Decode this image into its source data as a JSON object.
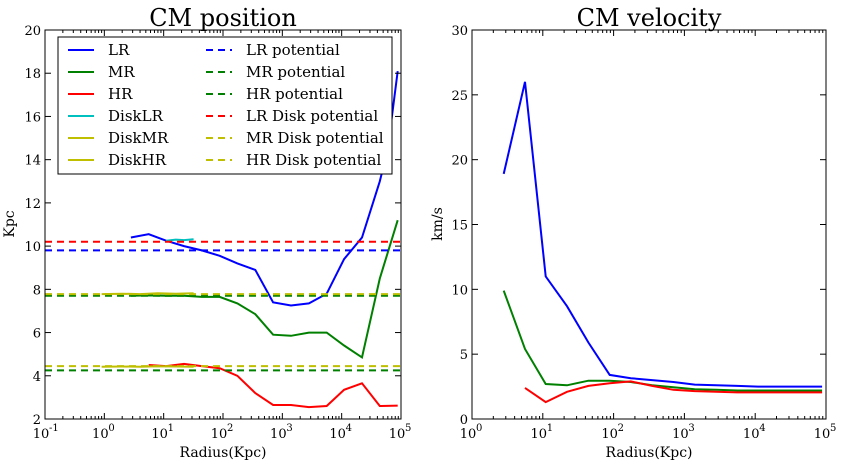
{
  "chart_data": [
    {
      "type": "line",
      "title": "CM position",
      "xlabel": "Radius(Kpc)",
      "ylabel": "Kpc",
      "xscale": "log",
      "xlim": [
        0.1,
        100000
      ],
      "ylim": [
        2,
        20
      ],
      "xticks": [
        "10",
        "10",
        "10",
        "10",
        "10",
        "10",
        "10"
      ],
      "xtick_exponents": [
        "-1",
        "0",
        "1",
        "2",
        "3",
        "4",
        "5"
      ],
      "xtick_values": [
        0.1,
        1,
        10,
        100,
        1000,
        10000,
        100000
      ],
      "yticks": [
        "2",
        "4",
        "6",
        "8",
        "10",
        "12",
        "14",
        "16",
        "18",
        "20"
      ],
      "ytick_values": [
        2,
        4,
        6,
        8,
        10,
        12,
        14,
        16,
        18,
        20
      ],
      "grid": false,
      "legend_position": "top-left",
      "legend_columns": 2,
      "series": [
        {
          "name": "LR",
          "color": "#0000ff",
          "style": "solid",
          "x": [
            2.8,
            5.6,
            11,
            22,
            44,
            88,
            175,
            350,
            700,
            1400,
            2800,
            5600,
            11000,
            22000,
            44000,
            60000,
            88000
          ],
          "y": [
            10.4,
            10.55,
            10.25,
            10.0,
            9.8,
            9.55,
            9.2,
            8.9,
            7.4,
            7.25,
            7.35,
            7.8,
            9.4,
            10.4,
            13.0,
            14.5,
            18.1
          ]
        },
        {
          "name": "MR",
          "color": "#008000",
          "style": "solid",
          "x": [
            2.8,
            5.6,
            11,
            22,
            44,
            88,
            175,
            350,
            700,
            1400,
            2800,
            5600,
            11000,
            22000,
            44000,
            88000
          ],
          "y": [
            7.7,
            7.72,
            7.7,
            7.7,
            7.65,
            7.65,
            7.35,
            6.85,
            5.9,
            5.85,
            6.0,
            6.0,
            5.4,
            4.85,
            8.5,
            11.2
          ]
        },
        {
          "name": "HR",
          "color": "#ff0000",
          "style": "solid",
          "x": [
            5.6,
            11,
            22,
            44,
            88,
            175,
            350,
            700,
            1400,
            2800,
            5600,
            11000,
            22000,
            44000,
            88000
          ],
          "y": [
            4.5,
            4.45,
            4.55,
            4.45,
            4.35,
            4.0,
            3.2,
            2.65,
            2.65,
            2.55,
            2.6,
            3.35,
            3.65,
            2.6,
            2.62
          ]
        },
        {
          "name": "DiskLR",
          "color": "#00bfbf",
          "style": "solid",
          "x": [
            11,
            16,
            22,
            32
          ],
          "y": [
            10.25,
            10.3,
            10.28,
            10.32
          ]
        },
        {
          "name": "DiskMR",
          "color": "#bfbf00",
          "style": "solid",
          "x": [
            0.9,
            2,
            4,
            8,
            16,
            32
          ],
          "y": [
            7.78,
            7.8,
            7.78,
            7.82,
            7.8,
            7.82
          ]
        },
        {
          "name": "DiskHR",
          "color": "#bfbf00",
          "style": "solid",
          "x": [
            0.9,
            2,
            4,
            8,
            16,
            32
          ],
          "y": [
            4.42,
            4.43,
            4.42,
            4.44,
            4.43,
            4.42
          ]
        },
        {
          "name": "LR potential",
          "color": "#0000ff",
          "style": "dashed",
          "x": [
            0.1,
            100000
          ],
          "y": [
            9.8,
            9.8
          ]
        },
        {
          "name": "MR potential",
          "color": "#008000",
          "style": "dashed",
          "x": [
            0.1,
            100000
          ],
          "y": [
            7.7,
            7.7
          ]
        },
        {
          "name": "HR potential",
          "color": "#008000",
          "style": "dashed",
          "x": [
            0.1,
            100000
          ],
          "y": [
            4.25,
            4.25
          ]
        },
        {
          "name": "LR Disk potential",
          "color": "#ff0000",
          "style": "dashed",
          "x": [
            0.1,
            100000
          ],
          "y": [
            10.2,
            10.2
          ]
        },
        {
          "name": "MR Disk potential",
          "color": "#bfbf00",
          "style": "dashed",
          "x": [
            0.1,
            100000
          ],
          "y": [
            7.78,
            7.78
          ]
        },
        {
          "name": "HR Disk potential",
          "color": "#bfbf00",
          "style": "dashed",
          "x": [
            0.1,
            100000
          ],
          "y": [
            4.45,
            4.45
          ]
        }
      ]
    },
    {
      "type": "line",
      "title": "CM velocity",
      "xlabel": "Radius(Kpc)",
      "ylabel": "km/s",
      "xscale": "log",
      "xlim": [
        1,
        100000
      ],
      "ylim": [
        0,
        30
      ],
      "xticks": [
        "10",
        "10",
        "10",
        "10",
        "10",
        "10"
      ],
      "xtick_exponents": [
        "0",
        "1",
        "2",
        "3",
        "4",
        "5"
      ],
      "xtick_values": [
        1,
        10,
        100,
        1000,
        10000,
        100000
      ],
      "yticks": [
        "0",
        "5",
        "10",
        "15",
        "20",
        "25",
        "30"
      ],
      "ytick_values": [
        0,
        5,
        10,
        15,
        20,
        25,
        30
      ],
      "grid": false,
      "series": [
        {
          "color": "#0000ff",
          "style": "solid",
          "x": [
            2.8,
            5.6,
            11,
            22,
            44,
            88,
            175,
            350,
            700,
            1400,
            2800,
            5600,
            11000,
            22000,
            44000,
            88000
          ],
          "y": [
            18.9,
            26.0,
            11.0,
            8.7,
            5.9,
            3.4,
            3.15,
            3.0,
            2.85,
            2.65,
            2.6,
            2.55,
            2.5,
            2.5,
            2.5,
            2.5
          ]
        },
        {
          "color": "#008000",
          "style": "solid",
          "x": [
            2.8,
            5.6,
            11,
            22,
            44,
            88,
            175,
            350,
            700,
            1400,
            2800,
            5600,
            11000,
            22000,
            44000,
            88000
          ],
          "y": [
            9.9,
            5.4,
            2.7,
            2.6,
            2.95,
            2.95,
            2.85,
            2.6,
            2.45,
            2.3,
            2.25,
            2.2,
            2.2,
            2.2,
            2.2,
            2.2
          ]
        },
        {
          "color": "#ff0000",
          "style": "solid",
          "x": [
            5.6,
            11,
            22,
            44,
            88,
            175,
            350,
            700,
            1400,
            2800,
            5600,
            11000,
            22000,
            44000,
            88000
          ],
          "y": [
            2.4,
            1.3,
            2.1,
            2.55,
            2.75,
            2.9,
            2.55,
            2.25,
            2.15,
            2.1,
            2.05,
            2.05,
            2.05,
            2.05,
            2.05
          ]
        }
      ]
    }
  ]
}
